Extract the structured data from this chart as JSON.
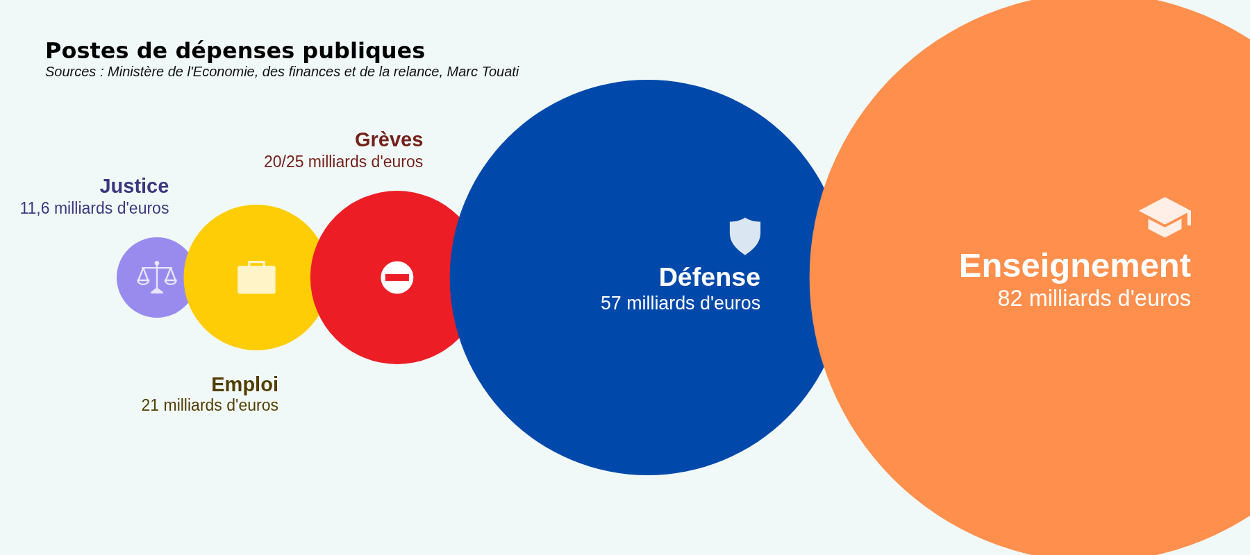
{
  "chart_data": {
    "type": "other",
    "title": "Postes de dépenses publiques",
    "annotations": [
      "Sources : Ministère de l'Economie, des finances et de la relance, Marc Touati"
    ],
    "categories": [
      "Justice",
      "Emploi",
      "Grèves",
      "Défense",
      "Enseignement"
    ],
    "values": [
      11.6,
      21,
      25,
      57,
      82
    ],
    "value_labels": [
      "11,6 milliards d'euros",
      "21 milliards d'euros",
      "20/25 milliards d'euros",
      "57 milliards d'euros",
      "82 milliards d'euros"
    ],
    "colors": [
      "#998bee",
      "#ffcd05",
      "#ed1d25",
      "#0049ab",
      "#ff8f4d"
    ]
  }
}
